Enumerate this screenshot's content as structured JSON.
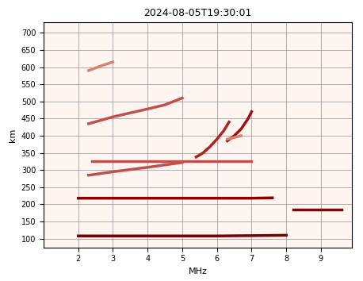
{
  "chart_data": {
    "type": "line",
    "title": "2024-08-05T19:30:01",
    "x_label": "MHz",
    "y_label": "km",
    "xlim": [
      1.0,
      9.9
    ],
    "xticks": [
      2,
      3,
      4,
      5,
      6,
      7,
      8,
      9
    ],
    "ylim": [
      75,
      730
    ],
    "yticks": [
      100,
      150,
      200,
      250,
      300,
      350,
      400,
      450,
      500,
      550,
      600,
      650,
      700
    ],
    "grid": true,
    "line_style": "solid",
    "series": [
      {
        "color": "#7a0000",
        "x": [
          2.0,
          3.0,
          4.0,
          5.0,
          6.0,
          7.0,
          8.0
        ],
        "values": [
          108,
          108,
          108,
          108,
          108,
          109,
          110
        ]
      },
      {
        "color": "#8b0000",
        "x": [
          2.0,
          3.0,
          4.0,
          5.0,
          6.0,
          7.0,
          7.6
        ],
        "values": [
          218,
          218,
          218,
          218,
          218,
          218,
          219
        ]
      },
      {
        "color": "#c0504d",
        "x": [
          2.4,
          3.5,
          5.0,
          6.0,
          7.0
        ],
        "values": [
          325,
          325,
          325,
          325,
          325
        ]
      },
      {
        "color": "#c0504d",
        "x": [
          2.3,
          3.0,
          4.0,
          5.0
        ],
        "values": [
          285,
          295,
          308,
          322
        ]
      },
      {
        "color": "#b22222",
        "x": [
          5.4,
          5.6,
          5.8,
          6.0,
          6.2,
          6.35
        ],
        "values": [
          338,
          350,
          368,
          390,
          415,
          440
        ]
      },
      {
        "color": "#a01010",
        "x": [
          6.3,
          6.5,
          6.7,
          6.9,
          7.0
        ],
        "values": [
          385,
          400,
          420,
          450,
          470
        ]
      },
      {
        "color": "#d9826f",
        "x": [
          6.3,
          6.5,
          6.7
        ],
        "values": [
          390,
          395,
          400
        ]
      },
      {
        "color": "#c0504d",
        "x": [
          2.3,
          3.0,
          4.0,
          4.5,
          5.0
        ],
        "values": [
          435,
          455,
          478,
          490,
          510
        ]
      },
      {
        "color": "#d9826f",
        "x": [
          2.3,
          2.7,
          3.0
        ],
        "values": [
          590,
          605,
          615
        ]
      },
      {
        "color": "#8b0000",
        "x": [
          8.2,
          8.6,
          9.0,
          9.6
        ],
        "values": [
          186,
          186,
          186,
          186
        ]
      }
    ]
  }
}
